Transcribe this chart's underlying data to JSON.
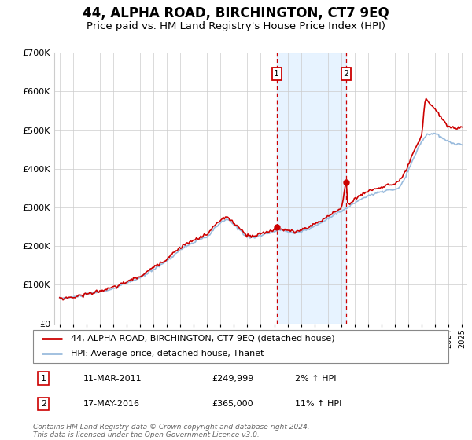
{
  "title": "44, ALPHA ROAD, BIRCHINGTON, CT7 9EQ",
  "subtitle": "Price paid vs. HM Land Registry's House Price Index (HPI)",
  "title_fontsize": 12,
  "subtitle_fontsize": 9.5,
  "background_color": "#ffffff",
  "grid_color": "#cccccc",
  "ylim": [
    0,
    700000
  ],
  "yticks": [
    0,
    100000,
    200000,
    300000,
    400000,
    500000,
    600000,
    700000
  ],
  "shade_color": "#ddeeff",
  "vline_color": "#cc0000",
  "marker_color": "#cc0000",
  "red_line_color": "#cc0000",
  "blue_line_color": "#99bbdd",
  "legend_label_red": "44, ALPHA ROAD, BIRCHINGTON, CT7 9EQ (detached house)",
  "legend_label_blue": "HPI: Average price, detached house, Thanet",
  "transaction1_date": "11-MAR-2011",
  "transaction1_price": "£249,999",
  "transaction1_hpi": "2% ↑ HPI",
  "transaction1_year": 2011.19,
  "transaction1_value": 249999,
  "transaction2_date": "17-MAY-2016",
  "transaction2_price": "£365,000",
  "transaction2_hpi": "11% ↑ HPI",
  "transaction2_year": 2016.37,
  "transaction2_value": 365000,
  "footer": "Contains HM Land Registry data © Crown copyright and database right 2024.\nThis data is licensed under the Open Government Licence v3.0."
}
